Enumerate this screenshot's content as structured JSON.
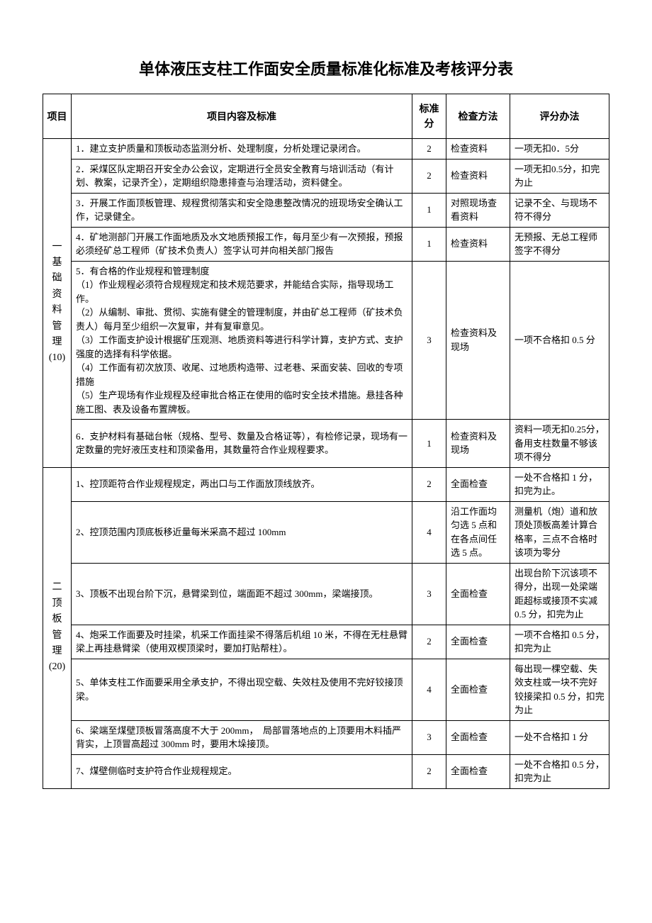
{
  "title": "单体液压支柱工作面安全质量标准化标准及考核评分表",
  "headers": {
    "cat": "项目",
    "content": "项目内容及标准",
    "score": "标准分",
    "method": "检查方法",
    "eval": "评分办法"
  },
  "cat1": {
    "l1": "一",
    "l2": "基",
    "l3": "础",
    "l4": "资",
    "l5": "料",
    "l6": "管",
    "l7": "理",
    "l8": "(10)"
  },
  "cat2": {
    "l1": "二",
    "l2": "顶",
    "l3": "板",
    "l4": "管",
    "l5": "理",
    "l6": "(20)"
  },
  "r1": {
    "content": "1．建立支护质量和顶板动态监测分析、处理制度，分析处理记录闭合。",
    "score": "2",
    "method": "检查资料",
    "eval": "一项无扣0．5分"
  },
  "r2": {
    "content": "2．采煤区队定期召开安全办公会议，定期进行全员安全教育与培训活动（有计划、教案，记录齐全），定期组织隐患排查与治理活动，资料健全。",
    "score": "2",
    "method": "检查资料",
    "eval": "一项无扣0.5分，扣完为止"
  },
  "r3": {
    "content": "3．开展工作面顶板管理、规程贯彻落实和安全隐患整改情况的班现场安全确认工作，记录健全。",
    "score": "1",
    "method": "对照现场查看资料",
    "eval": "记录不全、与现场不符不得分"
  },
  "r4": {
    "content": "4．矿地测部门开展工作面地质及水文地质预报工作，每月至少有一次预报，预报必须经矿总工程师（矿技术负责人）签字认可并向相关部门报告",
    "score": "1",
    "method": "检查资料",
    "eval": "无预报、无总工程师签字不得分"
  },
  "r5": {
    "c0": "5．有合格的作业规程和管理制度",
    "c1": "（1）作业规程必须符合规程规定和技术规范要求，并能结合实际，指导现场工作。",
    "c2": "（2）从编制、审批、贯彻、实施有健全的管理制度，并由矿总工程师（矿技术负责人）每月至少组织一次复审，并有复审意见。",
    "c3": "（3）工作面支护设计根据矿压观测、地质资料等进行科学计算，支护方式、支护强度的选择有科学依据。",
    "c4": "（4）工作面有初次放顶、收尾、过地质构造带、过老巷、采面安装、回收的专项措施",
    "c5": "（5）生产现场有作业规程及经审批合格正在使用的临时安全技术措施。悬挂各种施工图、表及设备布置牌板。",
    "score": "3",
    "method": "检查资料及现场",
    "eval": "一项不合格扣 0.5 分"
  },
  "r6": {
    "content": "6．支护材料有基础台帐（规格、型号、数量及合格证等），有检修记录，现场有一定数量的完好液压支柱和顶梁备用，其数量符合作业规程要求。",
    "score": "1",
    "method": "检查资料及现场",
    "eval": "资料一项无扣0.25分，备用支柱数量不够该项不得分"
  },
  "r7": {
    "content": "1、控顶距符合作业规程规定，两出口与工作面放顶线放齐。",
    "score": "2",
    "method": "全面检查",
    "eval": "一处不合格扣 1 分，扣完为止。"
  },
  "r8": {
    "content": "2、控顶范围内顶底板移近量每米采高不超过 100mm",
    "score": "4",
    "method": "沿工作面均匀选 5 点和在各点间任选 5 点。",
    "eval": "测量机（炮）道和放顶处顶板高差计算合格率，三点不合格时该项为零分"
  },
  "r9": {
    "content": "3、顶板不出现台阶下沉，悬臂梁到位，端面距不超过 300mm，梁端接顶。",
    "score": "3",
    "method": "全面检查",
    "eval": "出现台阶下沉该项不得分，出现一处梁端距超标或接顶不实减 0.5 分，扣完为止"
  },
  "r10": {
    "content": "4、炮采工作面要及时挂梁，机采工作面挂梁不得落后机组 10 米，不得在无柱悬臂梁上再挂悬臂梁（使用双楔顶梁时，要加打贴帮柱）。",
    "score": "2",
    "method": "全面检查",
    "eval": "一项不合格扣 0.5 分，扣完为止"
  },
  "r11": {
    "content": "5、单体支柱工作面要采用全承支护，不得出现空载、失效柱及使用不完好铰接顶梁。",
    "score": "4",
    "method": "全面检查",
    "eval": "每出现一棵空载、失效支柱或一块不完好铰接梁扣 0.5 分，扣完为止"
  },
  "r12": {
    "content": "6、梁端至煤壁顶板冒落高度不大于 200mm，　局部冒落地点的上顶要用木料插严背实，上顶冒高超过 300mm 时，要用木垛接顶。",
    "score": "3",
    "method": "全面检查",
    "eval": "一处不合格扣 1 分"
  },
  "r13": {
    "content": "7、煤壁侧临时支护符合作业规程规定。",
    "score": "2",
    "method": "全面检查",
    "eval": "一处不合格扣 0.5 分，扣完为止"
  }
}
